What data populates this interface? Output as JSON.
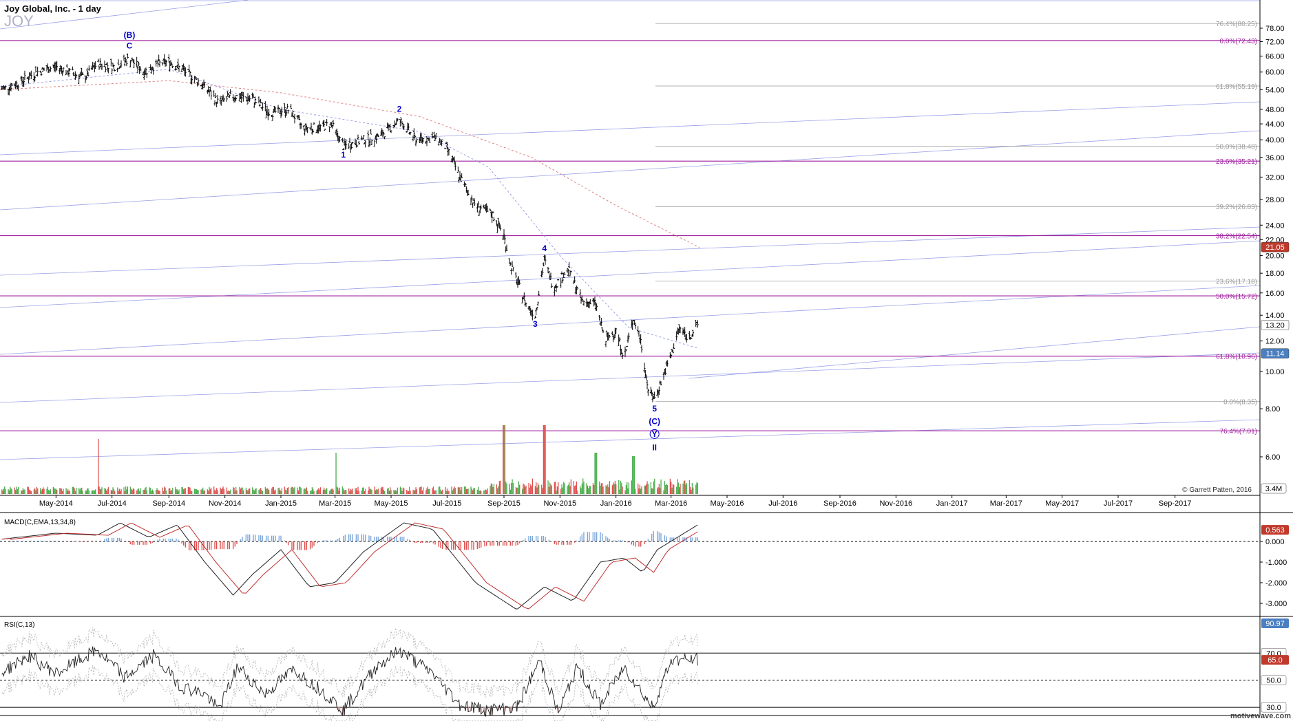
{
  "header": {
    "title": "Joy Global, Inc. - 1 day",
    "symbol": "JOY"
  },
  "copyright": "© Garrett Patten, 2016",
  "watermark": "motivewave.com",
  "colors": {
    "fib": "#a020a0",
    "trend": "#9aa0e8",
    "wave": "#0000cc",
    "price": "#000000",
    "up": "#4caf50",
    "down": "#e05050",
    "macd_hist": "#7aa6d8"
  },
  "chart_data": [
    {
      "type": "ohlc",
      "name": "price",
      "y_scale": "log",
      "yticks": [
        "78.00",
        "72.00",
        "66.00",
        "60.00",
        "54.00",
        "48.00",
        "44.00",
        "40.00",
        "36.00",
        "32.00",
        "28.00",
        "24.00",
        "22.00",
        "20.00",
        "18.00",
        "16.00",
        "14.00",
        "12.00",
        "10.00",
        "8.00",
        "6.00"
      ],
      "ylim": [
        5.2,
        82
      ],
      "xticks": [
        "May-2014",
        "Jul-2014",
        "Sep-2014",
        "Nov-2014",
        "Jan-2015",
        "Mar-2015",
        "May-2015",
        "Jul-2015",
        "Sep-2015",
        "Nov-2015",
        "Jan-2016",
        "Mar-2016",
        "May-2016",
        "Jul-2016",
        "Sep-2016",
        "Nov-2016",
        "Jan-2017",
        "Mar-2017",
        "May-2017",
        "Jul-2017",
        "Sep-2017"
      ],
      "price_path": [
        {
          "d": "2014-03-01",
          "p": 54
        },
        {
          "d": "2014-03-20",
          "p": 56
        },
        {
          "d": "2014-04-10",
          "p": 60
        },
        {
          "d": "2014-05-01",
          "p": 62
        },
        {
          "d": "2014-06-01",
          "p": 58
        },
        {
          "d": "2014-06-15",
          "p": 63
        },
        {
          "d": "2014-07-05",
          "p": 62
        },
        {
          "d": "2014-07-20",
          "p": 65
        },
        {
          "d": "2014-08-05",
          "p": 60
        },
        {
          "d": "2014-08-20",
          "p": 63
        },
        {
          "d": "2014-09-01",
          "p": 64
        },
        {
          "d": "2014-09-20",
          "p": 60
        },
        {
          "d": "2014-10-10",
          "p": 55
        },
        {
          "d": "2014-10-25",
          "p": 50
        },
        {
          "d": "2014-11-10",
          "p": 52
        },
        {
          "d": "2014-12-01",
          "p": 51
        },
        {
          "d": "2014-12-20",
          "p": 47
        },
        {
          "d": "2015-01-10",
          "p": 48
        },
        {
          "d": "2015-01-25",
          "p": 43
        },
        {
          "d": "2015-02-10",
          "p": 43
        },
        {
          "d": "2015-02-25",
          "p": 44
        },
        {
          "d": "2015-03-10",
          "p": 38.5
        },
        {
          "d": "2015-04-01",
          "p": 40
        },
        {
          "d": "2015-04-20",
          "p": 41
        },
        {
          "d": "2015-05-10",
          "p": 45
        },
        {
          "d": "2015-05-28",
          "p": 40
        },
        {
          "d": "2015-06-20",
          "p": 40.5
        },
        {
          "d": "2015-07-01",
          "p": 38
        },
        {
          "d": "2015-07-15",
          "p": 32
        },
        {
          "d": "2015-08-01",
          "p": 27
        },
        {
          "d": "2015-08-20",
          "p": 25.5
        },
        {
          "d": "2015-09-01",
          "p": 22.5
        },
        {
          "d": "2015-09-08",
          "p": 19
        },
        {
          "d": "2015-09-25",
          "p": 15
        },
        {
          "d": "2015-10-05",
          "p": 14
        },
        {
          "d": "2015-10-15",
          "p": 19.5
        },
        {
          "d": "2015-10-25",
          "p": 16.5
        },
        {
          "d": "2015-11-10",
          "p": 18.5
        },
        {
          "d": "2015-11-25",
          "p": 15.2
        },
        {
          "d": "2015-12-10",
          "p": 15
        },
        {
          "d": "2015-12-20",
          "p": 12
        },
        {
          "d": "2016-01-01",
          "p": 12.8
        },
        {
          "d": "2016-01-10",
          "p": 10.8
        },
        {
          "d": "2016-01-20",
          "p": 13.8
        },
        {
          "d": "2016-01-28",
          "p": 12
        },
        {
          "d": "2016-02-05",
          "p": 9
        },
        {
          "d": "2016-02-12",
          "p": 8.5
        },
        {
          "d": "2016-02-20",
          "p": 9.5
        },
        {
          "d": "2016-03-01",
          "p": 11
        },
        {
          "d": "2016-03-10",
          "p": 13
        },
        {
          "d": "2016-03-20",
          "p": 12.2
        },
        {
          "d": "2016-03-30",
          "p": 13.2
        }
      ],
      "moving_averages": [
        {
          "style": "dashed",
          "color": "#e08080",
          "points": [
            [
              "2014-03-01",
              54
            ],
            [
              "2014-09-01",
              57
            ],
            [
              "2015-01-01",
              53
            ],
            [
              "2015-06-01",
              46
            ],
            [
              "2015-10-01",
              36
            ],
            [
              "2016-01-01",
              27
            ],
            [
              "2016-04-01",
              21
            ]
          ]
        },
        {
          "style": "dashed",
          "color": "#9aa0e8",
          "points": [
            [
              "2014-03-01",
              55
            ],
            [
              "2014-09-01",
              61
            ],
            [
              "2015-01-01",
              48
            ],
            [
              "2015-06-01",
              42
            ],
            [
              "2015-08-15",
              34
            ],
            [
              "2015-11-01",
              20
            ],
            [
              "2016-01-15",
              13
            ],
            [
              "2016-03-30",
              11.5
            ]
          ]
        }
      ],
      "fib_levels": [
        {
          "label": "0.0%(72.43)",
          "price": 72.43,
          "color": "#a020a0"
        },
        {
          "label": "23.6%(35.21)",
          "price": 35.21,
          "color": "#a020a0"
        },
        {
          "label": "38.2%(22.54)",
          "price": 22.54,
          "color": "#a020a0"
        },
        {
          "label": "50.0%(15.72)",
          "price": 15.72,
          "color": "#a020a0"
        },
        {
          "label": "61.8%(10.96)",
          "price": 10.96,
          "color": "#a020a0"
        },
        {
          "label": "76.4%(7.01)",
          "price": 7.01,
          "color": "#a020a0"
        },
        {
          "label": "61.8%(55.19)",
          "price": 55.19,
          "color": "#999999"
        },
        {
          "label": "50.0%(38.48)",
          "price": 38.48,
          "color": "#999999"
        },
        {
          "label": "39.2%(26.83)",
          "price": 26.83,
          "color": "#999999"
        },
        {
          "label": "23.6%(17.18)",
          "price": 17.18,
          "color": "#999999"
        },
        {
          "label": "0.0%(8.35)",
          "price": 8.35,
          "color": "#999999"
        },
        {
          "label": "76.4%(80.25)",
          "price": 80.25,
          "color": "#999999"
        }
      ],
      "price_badges": [
        {
          "label": "21.05",
          "price": 21.05,
          "bg": "#c0392b",
          "fg": "#ffffff"
        },
        {
          "label": "13.20",
          "price": 13.2,
          "bg": "#ffffff",
          "fg": "#000000"
        },
        {
          "label": "11.14",
          "price": 11.14,
          "bg": "#4a7fc1",
          "fg": "#ffffff"
        }
      ],
      "wave_labels": [
        {
          "text": "(B)",
          "d": "2014-07-20",
          "p": 72.43,
          "above": true
        },
        {
          "text": "C",
          "d": "2014-07-20",
          "p": 68,
          "above": true
        },
        {
          "text": "1",
          "d": "2015-03-10",
          "p": 37.5,
          "above": false
        },
        {
          "text": "2",
          "d": "2015-05-10",
          "p": 46.5,
          "above": true
        },
        {
          "text": "3",
          "d": "2015-10-05",
          "p": 13.6,
          "above": false
        },
        {
          "text": "4",
          "d": "2015-10-15",
          "p": 20.2,
          "above": true
        },
        {
          "text": "5",
          "d": "2016-02-12",
          "p": 8.2,
          "above": false
        },
        {
          "text": "(C)",
          "d": "2016-02-12",
          "p": 7.6,
          "above": false
        },
        {
          "text": "Y",
          "d": "2016-02-12",
          "p": 7.05,
          "above": false,
          "circled": true
        },
        {
          "text": "II",
          "d": "2016-02-12",
          "p": 6.5,
          "above": false
        }
      ]
    },
    {
      "type": "volume",
      "name": "volume",
      "badge": "3.4M",
      "spikes": [
        {
          "d": "2014-06-15",
          "v": 0.8
        },
        {
          "d": "2015-03-01",
          "v": 0.6
        },
        {
          "d": "2015-09-01",
          "v": 1.0
        },
        {
          "d": "2015-10-15",
          "v": 1.0
        },
        {
          "d": "2015-12-10",
          "v": 0.6
        },
        {
          "d": "2016-01-20",
          "v": 0.55
        }
      ]
    },
    {
      "type": "macd",
      "name": "MACD(C,EMA,13,34,8)",
      "yticks": [
        "0.000",
        "-1.000",
        "-2.000",
        "-3.000"
      ],
      "ylim": [
        -3.6,
        1.3
      ],
      "badge": "0.563",
      "macd": [
        {
          "d": "2014-03-01",
          "v": 0.1
        },
        {
          "d": "2014-05-01",
          "v": 0.4
        },
        {
          "d": "2014-06-15",
          "v": 0.3
        },
        {
          "d": "2014-07-10",
          "v": 0.9
        },
        {
          "d": "2014-08-10",
          "v": 0.2
        },
        {
          "d": "2014-09-10",
          "v": 0.8
        },
        {
          "d": "2014-10-10",
          "v": -1.0
        },
        {
          "d": "2014-11-10",
          "v": -2.6
        },
        {
          "d": "2014-12-01",
          "v": -1.6
        },
        {
          "d": "2015-01-01",
          "v": -0.4
        },
        {
          "d": "2015-02-01",
          "v": -2.2
        },
        {
          "d": "2015-03-01",
          "v": -2.0
        },
        {
          "d": "2015-04-01",
          "v": -0.5
        },
        {
          "d": "2015-05-15",
          "v": 0.9
        },
        {
          "d": "2015-06-15",
          "v": 0.6
        },
        {
          "d": "2015-08-01",
          "v": -2.0
        },
        {
          "d": "2015-09-15",
          "v": -3.3
        },
        {
          "d": "2015-10-15",
          "v": -2.2
        },
        {
          "d": "2015-11-15",
          "v": -2.9
        },
        {
          "d": "2015-12-15",
          "v": -1.0
        },
        {
          "d": "2016-01-10",
          "v": -0.8
        },
        {
          "d": "2016-01-30",
          "v": -1.5
        },
        {
          "d": "2016-02-15",
          "v": -0.4
        },
        {
          "d": "2016-03-30",
          "v": 0.8
        }
      ],
      "signal_lag_days": 12
    },
    {
      "type": "rsi",
      "name": "RSI(C,13)",
      "yticks": [
        "70.0",
        "50.0",
        "30.0"
      ],
      "ylim": [
        25,
        96
      ],
      "badges": [
        {
          "label": "90.97",
          "bg": "#4a7fc1"
        },
        {
          "label": "65.0",
          "bg": "#c0392b"
        }
      ],
      "rsi": [
        {
          "d": "2014-03-01",
          "v": 55
        },
        {
          "d": "2014-04-01",
          "v": 68
        },
        {
          "d": "2014-05-01",
          "v": 55
        },
        {
          "d": "2014-06-15",
          "v": 72
        },
        {
          "d": "2014-07-15",
          "v": 52
        },
        {
          "d": "2014-08-15",
          "v": 68
        },
        {
          "d": "2014-09-15",
          "v": 45
        },
        {
          "d": "2014-10-10",
          "v": 40
        },
        {
          "d": "2014-10-25",
          "v": 28
        },
        {
          "d": "2014-11-15",
          "v": 60
        },
        {
          "d": "2014-12-15",
          "v": 40
        },
        {
          "d": "2015-01-15",
          "v": 58
        },
        {
          "d": "2015-02-15",
          "v": 42
        },
        {
          "d": "2015-03-10",
          "v": 28
        },
        {
          "d": "2015-04-15",
          "v": 60
        },
        {
          "d": "2015-05-10",
          "v": 72
        },
        {
          "d": "2015-06-15",
          "v": 55
        },
        {
          "d": "2015-07-15",
          "v": 32
        },
        {
          "d": "2015-08-15",
          "v": 28
        },
        {
          "d": "2015-09-15",
          "v": 30
        },
        {
          "d": "2015-10-10",
          "v": 65
        },
        {
          "d": "2015-10-30",
          "v": 26
        },
        {
          "d": "2015-11-20",
          "v": 60
        },
        {
          "d": "2015-12-15",
          "v": 32
        },
        {
          "d": "2016-01-10",
          "v": 60
        },
        {
          "d": "2016-02-10",
          "v": 30
        },
        {
          "d": "2016-03-01",
          "v": 65
        },
        {
          "d": "2016-03-30",
          "v": 65
        }
      ]
    }
  ]
}
